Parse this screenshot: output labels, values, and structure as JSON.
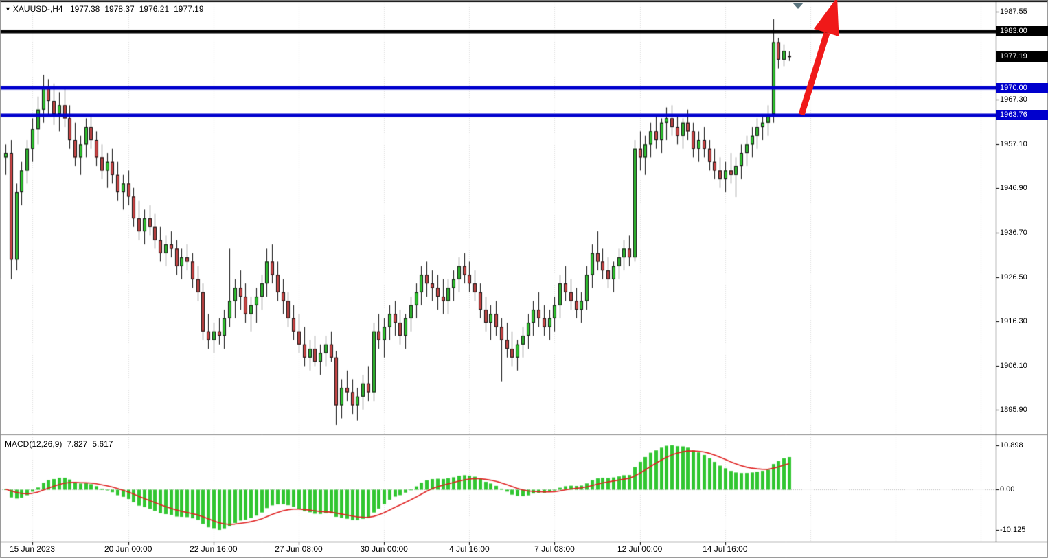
{
  "header": {
    "marker_glyph": "▼",
    "symbol_period": "XAUUSD-,H4",
    "open": "1977.38",
    "high": "1978.37",
    "low": "1976.21",
    "close": "1977.19"
  },
  "macd_panel": {
    "label": "MACD(12,26,9)",
    "main_value": "7.827",
    "signal_value": "5.617"
  },
  "colors": {
    "bull": "#2fbf2f",
    "bear": "#c64444",
    "wick": "#111111",
    "hline_black": "#000000",
    "hline_blue": "#0000cd",
    "macd_hist": "#31c631",
    "macd_signal": "#e02020",
    "arrow": "#f01919",
    "grid": "#dcdcdc",
    "tag_black_bg": "#000000",
    "tag_blue_bg": "#0000cd",
    "shift_marker": "#5a747e",
    "axis_text": "#000000"
  },
  "price_axis": {
    "plain_labels": [
      {
        "text": "1987.55",
        "price": 1987.55
      },
      {
        "text": "1967.30",
        "price": 1967.3
      },
      {
        "text": "1957.10",
        "price": 1957.1
      },
      {
        "text": "1946.90",
        "price": 1946.9
      },
      {
        "text": "1936.70",
        "price": 1936.7
      },
      {
        "text": "1926.50",
        "price": 1926.5
      },
      {
        "text": "1916.30",
        "price": 1916.3
      },
      {
        "text": "1906.10",
        "price": 1906.1
      },
      {
        "text": "1895.90",
        "price": 1895.9
      }
    ],
    "tags": [
      {
        "text": "1983.00",
        "price": 1983.0,
        "style": "black"
      },
      {
        "text": "1977.19",
        "price": 1977.19,
        "style": "black"
      },
      {
        "text": "1970.00",
        "price": 1970.0,
        "style": "blue"
      },
      {
        "text": "1963.76",
        "price": 1963.76,
        "style": "blue"
      }
    ]
  },
  "macd_axis": [
    {
      "text": "10.898",
      "value": 10.898
    },
    {
      "text": "0.00",
      "value": 0
    },
    {
      "text": "-10.125",
      "value": -10.125
    }
  ],
  "time_axis": [
    {
      "text": "15 Jun 2023",
      "index": 5
    },
    {
      "text": "20 Jun 00:00",
      "index": 23
    },
    {
      "text": "22 Jun 16:00",
      "index": 39
    },
    {
      "text": "27 Jun 08:00",
      "index": 55
    },
    {
      "text": "30 Jun 00:00",
      "index": 71
    },
    {
      "text": "4 Jul 16:00",
      "index": 87
    },
    {
      "text": "7 Jul 08:00",
      "index": 103
    },
    {
      "text": "12 Jul 00:00",
      "index": 119
    },
    {
      "text": "14 Jul 16:00",
      "index": 135
    }
  ],
  "chart_data": {
    "type": "candlestick",
    "symbol": "XAUUSD-",
    "timeframe": "H4",
    "ylim": [
      1890.6,
      1989.9
    ],
    "grid": "vertical-dotted",
    "hlines": [
      {
        "price": 1983.0,
        "color": "black",
        "width": 5
      },
      {
        "price": 1970.0,
        "color": "blue",
        "width": 5
      },
      {
        "price": 1963.76,
        "color": "blue",
        "width": 5
      }
    ],
    "annotations": [
      {
        "type": "arrow",
        "direction": "up-right",
        "start_price": 1963.76,
        "end_price": 1989.5,
        "color": "#f01919"
      }
    ],
    "macd": {
      "params": [
        12,
        26,
        9
      ],
      "current_main": 7.827,
      "current_signal": 5.617,
      "ylim": [
        -10.125,
        10.898
      ]
    },
    "candles": [
      [
        "14 Jun 04:00",
        1954,
        1957,
        1950,
        1955
      ],
      [
        "14 Jun 08:00",
        1955,
        1958,
        1926,
        1930.5
      ],
      [
        "14 Jun 12:00",
        1930.5,
        1948,
        1928,
        1946
      ],
      [
        "14 Jun 16:00",
        1946,
        1953,
        1943,
        1951
      ],
      [
        "14 Jun 20:00",
        1951,
        1958,
        1948,
        1956
      ],
      [
        "15 Jun 00:00",
        1956,
        1963,
        1953,
        1960.5
      ],
      [
        "15 Jun 04:00",
        1960.5,
        1968,
        1957,
        1965
      ],
      [
        "15 Jun 08:00",
        1965,
        1973,
        1962,
        1970
      ],
      [
        "15 Jun 12:00",
        1970,
        1972,
        1964,
        1967
      ],
      [
        "15 Jun 16:00",
        1967,
        1971,
        1961.5,
        1964
      ],
      [
        "15 Jun 20:00",
        1964,
        1969,
        1960,
        1966
      ],
      [
        "16 Jun 00:00",
        1966,
        1970,
        1961,
        1963
      ],
      [
        "16 Jun 04:00",
        1963,
        1966,
        1956,
        1958
      ],
      [
        "16 Jun 08:00",
        1958,
        1962,
        1952,
        1954
      ],
      [
        "16 Jun 12:00",
        1954,
        1959,
        1950,
        1957
      ],
      [
        "16 Jun 16:00",
        1957,
        1963,
        1954,
        1961
      ],
      [
        "16 Jun 20:00",
        1961,
        1964,
        1956,
        1958
      ],
      [
        "19 Jun 00:00",
        1958,
        1960,
        1952,
        1954
      ],
      [
        "19 Jun 04:00",
        1954,
        1957,
        1949,
        1951
      ],
      [
        "19 Jun 08:00",
        1951,
        1955,
        1947,
        1953
      ],
      [
        "19 Jun 12:00",
        1953,
        1956,
        1948,
        1950
      ],
      [
        "19 Jun 16:00",
        1950,
        1953,
        1944,
        1946
      ],
      [
        "19 Jun 20:00",
        1946,
        1950,
        1942,
        1948
      ],
      [
        "20 Jun 00:00",
        1948,
        1951,
        1943,
        1945
      ],
      [
        "20 Jun 04:00",
        1945,
        1947,
        1938,
        1940
      ],
      [
        "20 Jun 08:00",
        1940,
        1944,
        1935,
        1937
      ],
      [
        "20 Jun 12:00",
        1937,
        1942,
        1934,
        1940
      ],
      [
        "20 Jun 16:00",
        1940,
        1943,
        1936,
        1938
      ],
      [
        "20 Jun 20:00",
        1938,
        1941,
        1933,
        1935
      ],
      [
        "21 Jun 00:00",
        1935,
        1938,
        1930,
        1932
      ],
      [
        "21 Jun 04:00",
        1932,
        1936,
        1929,
        1934
      ],
      [
        "21 Jun 08:00",
        1934,
        1937,
        1931,
        1933
      ],
      [
        "21 Jun 12:00",
        1933,
        1935,
        1927,
        1929
      ],
      [
        "21 Jun 16:00",
        1929,
        1933,
        1926,
        1931
      ],
      [
        "21 Jun 20:00",
        1931,
        1934,
        1928,
        1930
      ],
      [
        "22 Jun 00:00",
        1930,
        1932,
        1924,
        1926
      ],
      [
        "22 Jun 04:00",
        1926,
        1929,
        1921,
        1923
      ],
      [
        "22 Jun 08:00",
        1923,
        1925,
        1912,
        1914
      ],
      [
        "22 Jun 12:00",
        1914,
        1918,
        1910,
        1912
      ],
      [
        "22 Jun 16:00",
        1912,
        1916,
        1909,
        1914
      ],
      [
        "22 Jun 20:00",
        1914,
        1917,
        1911,
        1913
      ],
      [
        "23 Jun 00:00",
        1913,
        1919,
        1910,
        1917
      ],
      [
        "23 Jun 04:00",
        1917,
        1933,
        1915,
        1921
      ],
      [
        "23 Jun 08:00",
        1921,
        1926,
        1917,
        1924
      ],
      [
        "23 Jun 12:00",
        1924,
        1928,
        1919,
        1922
      ],
      [
        "23 Jun 16:00",
        1922,
        1925,
        1916,
        1918
      ],
      [
        "23 Jun 20:00",
        1918,
        1922,
        1914,
        1920
      ],
      [
        "26 Jun 00:00",
        1920,
        1924,
        1916,
        1922
      ],
      [
        "26 Jun 04:00",
        1922,
        1927,
        1919,
        1925
      ],
      [
        "26 Jun 08:00",
        1925,
        1933,
        1922,
        1930
      ],
      [
        "26 Jun 12:00",
        1930,
        1934,
        1925,
        1927
      ],
      [
        "26 Jun 16:00",
        1927,
        1930,
        1921,
        1923
      ],
      [
        "26 Jun 20:00",
        1923,
        1926,
        1918,
        1921
      ],
      [
        "27 Jun 00:00",
        1921,
        1923,
        1915,
        1917
      ],
      [
        "27 Jun 04:00",
        1917,
        1920,
        1912,
        1914
      ],
      [
        "27 Jun 08:00",
        1914,
        1918,
        1909,
        1911
      ],
      [
        "27 Jun 12:00",
        1911,
        1915,
        1906,
        1908
      ],
      [
        "27 Jun 16:00",
        1908,
        1912,
        1905,
        1910
      ],
      [
        "27 Jun 20:00",
        1910,
        1913,
        1906,
        1907
      ],
      [
        "28 Jun 00:00",
        1907,
        1911,
        1904,
        1909
      ],
      [
        "28 Jun 04:00",
        1909,
        1913,
        1906,
        1911
      ],
      [
        "28 Jun 08:00",
        1911,
        1914,
        1907,
        1908
      ],
      [
        "28 Jun 12:00",
        1908,
        1909.5,
        1892.5,
        1897
      ],
      [
        "28 Jun 16:00",
        1897,
        1903,
        1894,
        1901
      ],
      [
        "28 Jun 20:00",
        1901,
        1905,
        1898,
        1900
      ],
      [
        "29 Jun 00:00",
        1900,
        1903,
        1895,
        1897
      ],
      [
        "29 Jun 04:00",
        1897,
        1901,
        1893.5,
        1899
      ],
      [
        "29 Jun 08:00",
        1899,
        1904,
        1896,
        1902
      ],
      [
        "29 Jun 12:00",
        1902,
        1906,
        1898,
        1900
      ],
      [
        "29 Jun 16:00",
        1900,
        1916,
        1898,
        1914
      ],
      [
        "29 Jun 20:00",
        1914,
        1918,
        1910,
        1912
      ],
      [
        "30 Jun 00:00",
        1912,
        1917,
        1908,
        1915
      ],
      [
        "30 Jun 04:00",
        1915,
        1920,
        1912,
        1918
      ],
      [
        "30 Jun 08:00",
        1918,
        1921,
        1913,
        1916
      ],
      [
        "30 Jun 12:00",
        1916,
        1919,
        1911,
        1913
      ],
      [
        "30 Jun 16:00",
        1913,
        1918,
        1910,
        1917
      ],
      [
        "30 Jun 20:00",
        1917,
        1922,
        1914,
        1920
      ],
      [
        "3 Jul 00:00",
        1920,
        1925,
        1917,
        1923
      ],
      [
        "3 Jul 04:00",
        1923,
        1929,
        1920,
        1927
      ],
      [
        "3 Jul 08:00",
        1927,
        1930,
        1922,
        1925
      ],
      [
        "3 Jul 12:00",
        1925,
        1928,
        1921,
        1924
      ],
      [
        "3 Jul 16:00",
        1924,
        1927,
        1919,
        1922
      ],
      [
        "3 Jul 20:00",
        1922,
        1926,
        1918,
        1921
      ],
      [
        "4 Jul 00:00",
        1921,
        1926,
        1918,
        1924
      ],
      [
        "4 Jul 04:00",
        1924,
        1928,
        1921,
        1926
      ],
      [
        "4 Jul 08:00",
        1926,
        1931,
        1923,
        1929
      ],
      [
        "4 Jul 12:00",
        1929,
        1932,
        1925,
        1927
      ],
      [
        "4 Jul 16:00",
        1927,
        1930,
        1923,
        1925
      ],
      [
        "4 Jul 20:00",
        1925,
        1928,
        1921,
        1923
      ],
      [
        "5 Jul 00:00",
        1923,
        1925,
        1917,
        1919
      ],
      [
        "5 Jul 04:00",
        1919,
        1922,
        1914,
        1916
      ],
      [
        "5 Jul 08:00",
        1916,
        1920,
        1912,
        1918
      ],
      [
        "5 Jul 12:00",
        1918,
        1921,
        1913,
        1915
      ],
      [
        "5 Jul 16:00",
        1915,
        1917,
        1902.5,
        1912
      ],
      [
        "5 Jul 20:00",
        1912,
        1916,
        1908,
        1910
      ],
      [
        "6 Jul 00:00",
        1910,
        1914,
        1906,
        1908
      ],
      [
        "6 Jul 04:00",
        1908,
        1912,
        1905,
        1911
      ],
      [
        "6 Jul 08:00",
        1911,
        1915,
        1908,
        1913
      ],
      [
        "6 Jul 12:00",
        1913,
        1918,
        1910,
        1916
      ],
      [
        "6 Jul 16:00",
        1916,
        1921,
        1913,
        1919
      ],
      [
        "6 Jul 20:00",
        1919,
        1923,
        1915,
        1917
      ],
      [
        "7 Jul 00:00",
        1917,
        1920,
        1913,
        1915
      ],
      [
        "7 Jul 04:00",
        1915,
        1919,
        1912,
        1917
      ],
      [
        "7 Jul 08:00",
        1917,
        1922,
        1914,
        1920
      ],
      [
        "7 Jul 12:00",
        1920,
        1927,
        1917,
        1925
      ],
      [
        "7 Jul 16:00",
        1925,
        1929,
        1921,
        1923
      ],
      [
        "7 Jul 20:00",
        1923,
        1926,
        1919,
        1921
      ],
      [
        "10 Jul 00:00",
        1921,
        1924,
        1917,
        1919
      ],
      [
        "10 Jul 04:00",
        1919,
        1923,
        1916,
        1921
      ],
      [
        "10 Jul 08:00",
        1921,
        1929,
        1919,
        1927
      ],
      [
        "10 Jul 12:00",
        1927,
        1934,
        1924,
        1932
      ],
      [
        "10 Jul 16:00",
        1932,
        1937,
        1928,
        1930
      ],
      [
        "10 Jul 20:00",
        1930,
        1933,
        1926,
        1928
      ],
      [
        "11 Jul 00:00",
        1928,
        1931,
        1924,
        1926
      ],
      [
        "11 Jul 04:00",
        1926,
        1930,
        1923,
        1929
      ],
      [
        "11 Jul 08:00",
        1929,
        1933,
        1926,
        1931
      ],
      [
        "11 Jul 12:00",
        1931,
        1935,
        1928,
        1933
      ],
      [
        "11 Jul 16:00",
        1933,
        1936,
        1929,
        1931
      ],
      [
        "11 Jul 20:00",
        1931,
        1958,
        1930,
        1956
      ],
      [
        "12 Jul 00:00",
        1956,
        1960,
        1951,
        1954
      ],
      [
        "12 Jul 04:00",
        1954,
        1959,
        1950,
        1957
      ],
      [
        "12 Jul 08:00",
        1957,
        1962,
        1954,
        1960
      ],
      [
        "12 Jul 12:00",
        1960,
        1964,
        1956,
        1958
      ],
      [
        "12 Jul 16:00",
        1958,
        1963,
        1955,
        1962
      ],
      [
        "12 Jul 20:00",
        1962,
        1965.5,
        1958,
        1963
      ],
      [
        "13 Jul 00:00",
        1963,
        1966,
        1959,
        1961
      ],
      [
        "13 Jul 04:00",
        1961,
        1964,
        1957,
        1959
      ],
      [
        "13 Jul 08:00",
        1959,
        1963,
        1956,
        1962
      ],
      [
        "13 Jul 12:00",
        1962,
        1965,
        1958,
        1960
      ],
      [
        "13 Jul 16:00",
        1960,
        1962,
        1954,
        1956
      ],
      [
        "13 Jul 20:00",
        1956,
        1960,
        1953,
        1958
      ],
      [
        "14 Jul 00:00",
        1958,
        1961,
        1954,
        1956
      ],
      [
        "14 Jul 04:00",
        1956,
        1958,
        1951,
        1953
      ],
      [
        "14 Jul 08:00",
        1953,
        1956,
        1949,
        1951
      ],
      [
        "14 Jul 12:00",
        1951,
        1954,
        1947,
        1949
      ],
      [
        "14 Jul 16:00",
        1949,
        1953,
        1946,
        1951
      ],
      [
        "14 Jul 20:00",
        1951,
        1955,
        1948,
        1950
      ],
      [
        "17 Jul 00:00",
        1950,
        1954,
        1944.9,
        1952
      ],
      [
        "17 Jul 04:00",
        1952,
        1957,
        1949,
        1955
      ],
      [
        "17 Jul 08:00",
        1955,
        1959,
        1952,
        1957
      ],
      [
        "17 Jul 12:00",
        1957,
        1961,
        1954,
        1959
      ],
      [
        "17 Jul 16:00",
        1959,
        1963,
        1956,
        1961
      ],
      [
        "17 Jul 20:00",
        1961,
        1964,
        1958,
        1962
      ],
      [
        "18 Jul 00:00",
        1962,
        1966,
        1959,
        1964
      ],
      [
        "18 Jul 04:00",
        1964,
        1985.8,
        1962,
        1980.5
      ],
      [
        "18 Jul 08:00",
        1980.5,
        1981.5,
        1974.5,
        1976.5
      ],
      [
        "18 Jul 12:00",
        1976.5,
        1980,
        1975,
        1978.5
      ],
      [
        "18 Jul 16:00",
        1977.38,
        1978.37,
        1976.21,
        1977.19
      ]
    ]
  }
}
